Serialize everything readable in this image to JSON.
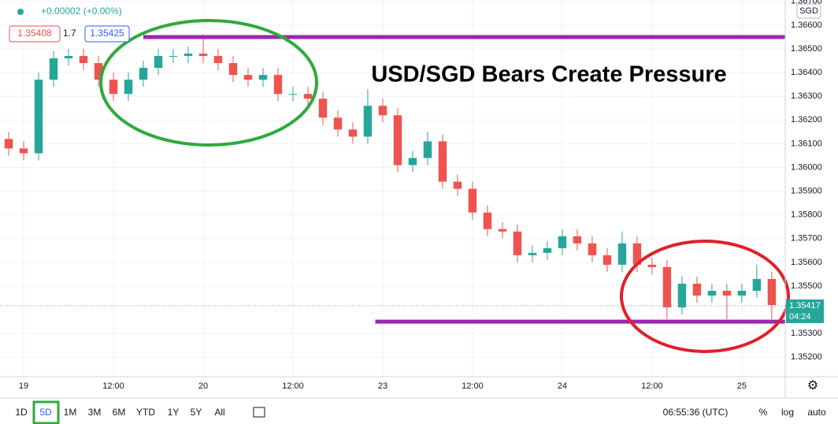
{
  "header": {
    "change": "+0.00002 (+0.00%)",
    "bid": "1.35408",
    "spread": "1.7",
    "ask": "1.35425",
    "currency": "SGD"
  },
  "chart_data": {
    "type": "candlestick",
    "title": "USD/SGD Bears Create Pressure",
    "x": [
      -2,
      0,
      2,
      4,
      6,
      8,
      10,
      12,
      14,
      16,
      18,
      20,
      22,
      24,
      26,
      28,
      30,
      32,
      34,
      36,
      38,
      40,
      42,
      44,
      46,
      48,
      50,
      52,
      54,
      56,
      58,
      60,
      62,
      64,
      66,
      68,
      70,
      72,
      74,
      76,
      78,
      80,
      82,
      84,
      86,
      88,
      90,
      92,
      94,
      96,
      98,
      100
    ],
    "open": [
      1.3612,
      1.3608,
      1.3606,
      1.3637,
      1.3646,
      1.3647,
      1.3644,
      1.3637,
      1.3631,
      1.3637,
      1.3642,
      1.3647,
      1.3647,
      1.3648,
      1.3647,
      1.3644,
      1.3639,
      1.3637,
      1.3639,
      1.3631,
      1.3631,
      1.3629,
      1.3621,
      1.3616,
      1.3613,
      1.3626,
      1.3622,
      1.3601,
      1.3604,
      1.3611,
      1.3594,
      1.3591,
      1.3581,
      1.3574,
      1.3573,
      1.3563,
      1.3564,
      1.3566,
      1.3571,
      1.3568,
      1.3563,
      1.3559,
      1.3568,
      1.3559,
      1.3558,
      1.3541,
      1.3551,
      1.3546,
      1.3548,
      1.3546,
      1.3548,
      1.3553
    ],
    "high": [
      1.3615,
      1.3611,
      1.364,
      1.3649,
      1.365,
      1.365,
      1.3647,
      1.364,
      1.364,
      1.3645,
      1.365,
      1.365,
      1.3651,
      1.3656,
      1.365,
      1.3647,
      1.3642,
      1.3642,
      1.3642,
      1.3634,
      1.3634,
      1.3632,
      1.3624,
      1.3619,
      1.3633,
      1.3629,
      1.3625,
      1.3607,
      1.3615,
      1.3614,
      1.3597,
      1.3594,
      1.3584,
      1.3577,
      1.3576,
      1.3567,
      1.3569,
      1.3574,
      1.3574,
      1.3571,
      1.3566,
      1.3573,
      1.3571,
      1.3562,
      1.3561,
      1.3554,
      1.3554,
      1.3551,
      1.3551,
      1.3551,
      1.3559,
      1.3556
    ],
    "low": [
      1.3605,
      1.3603,
      1.3603,
      1.3634,
      1.3643,
      1.3641,
      1.3634,
      1.3628,
      1.3628,
      1.3634,
      1.3639,
      1.3644,
      1.3644,
      1.3644,
      1.3641,
      1.3636,
      1.3634,
      1.3634,
      1.3628,
      1.3628,
      1.3626,
      1.3618,
      1.3613,
      1.361,
      1.361,
      1.3619,
      1.3598,
      1.3598,
      1.3601,
      1.3591,
      1.3588,
      1.3578,
      1.3571,
      1.357,
      1.356,
      1.356,
      1.3561,
      1.3563,
      1.3565,
      1.356,
      1.3556,
      1.3556,
      1.3556,
      1.3555,
      1.3536,
      1.3538,
      1.3543,
      1.3543,
      1.3536,
      1.3543,
      1.3545,
      1.3536
    ],
    "close": [
      1.3608,
      1.3606,
      1.3637,
      1.3646,
      1.3647,
      1.3644,
      1.3637,
      1.3631,
      1.3637,
      1.3642,
      1.3647,
      1.3647,
      1.3648,
      1.3647,
      1.3644,
      1.3639,
      1.3637,
      1.3639,
      1.3631,
      1.3631,
      1.3629,
      1.3621,
      1.3616,
      1.3613,
      1.3626,
      1.3622,
      1.3601,
      1.3604,
      1.3611,
      1.3594,
      1.3591,
      1.3581,
      1.3574,
      1.3573,
      1.3563,
      1.3564,
      1.3566,
      1.3571,
      1.3568,
      1.3563,
      1.3559,
      1.3568,
      1.3559,
      1.3558,
      1.3541,
      1.3551,
      1.3546,
      1.3548,
      1.3546,
      1.3548,
      1.3553,
      1.3542
    ],
    "up_color": "#26a69a",
    "down_color": "#ef5350",
    "xlim": [
      -3.16,
      101.8
    ],
    "xticks": [
      {
        "value": 0,
        "label": "19"
      },
      {
        "value": 12,
        "label": "12:00"
      },
      {
        "value": 24,
        "label": "20"
      },
      {
        "value": 36,
        "label": "12:00"
      },
      {
        "value": 48,
        "label": "23"
      },
      {
        "value": 60,
        "label": "12:00"
      },
      {
        "value": 72,
        "label": "24"
      },
      {
        "value": 84,
        "label": "12:00"
      },
      {
        "value": 96,
        "label": "25"
      }
    ],
    "ylim": [
      1.35078,
      1.36706
    ],
    "yticks": [
      {
        "value": 1.367,
        "label": "1.36700"
      },
      {
        "value": 1.366,
        "label": "1.36600"
      },
      {
        "value": 1.365,
        "label": "1.36500"
      },
      {
        "value": 1.364,
        "label": "1.36400"
      },
      {
        "value": 1.363,
        "label": "1.36300"
      },
      {
        "value": 1.362,
        "label": "1.36200"
      },
      {
        "value": 1.361,
        "label": "1.36100"
      },
      {
        "value": 1.36,
        "label": "1.36000"
      },
      {
        "value": 1.359,
        "label": "1.35900"
      },
      {
        "value": 1.358,
        "label": "1.35800"
      },
      {
        "value": 1.357,
        "label": "1.35700"
      },
      {
        "value": 1.356,
        "label": "1.35600"
      },
      {
        "value": 1.355,
        "label": "1.35500"
      },
      {
        "value": 1.353,
        "label": "1.35300"
      },
      {
        "value": 1.352,
        "label": "1.35200"
      }
    ],
    "grid": true,
    "last_price": 1.35417,
    "last_color": "#26a69a",
    "countdown": "04:24",
    "levels": [
      {
        "value": 1.3655,
        "from": 16,
        "color": "#9c27b0"
      },
      {
        "value": 1.3535,
        "from": 47,
        "color": "#9c27b0"
      }
    ]
  },
  "toolbar": {
    "ranges": [
      "1D",
      "5D",
      "1M",
      "3M",
      "6M",
      "YTD",
      "1Y",
      "5Y",
      "All"
    ],
    "active": 1,
    "clock": "06:55:36 (UTC)",
    "options": [
      "%",
      "log",
      "auto"
    ]
  }
}
